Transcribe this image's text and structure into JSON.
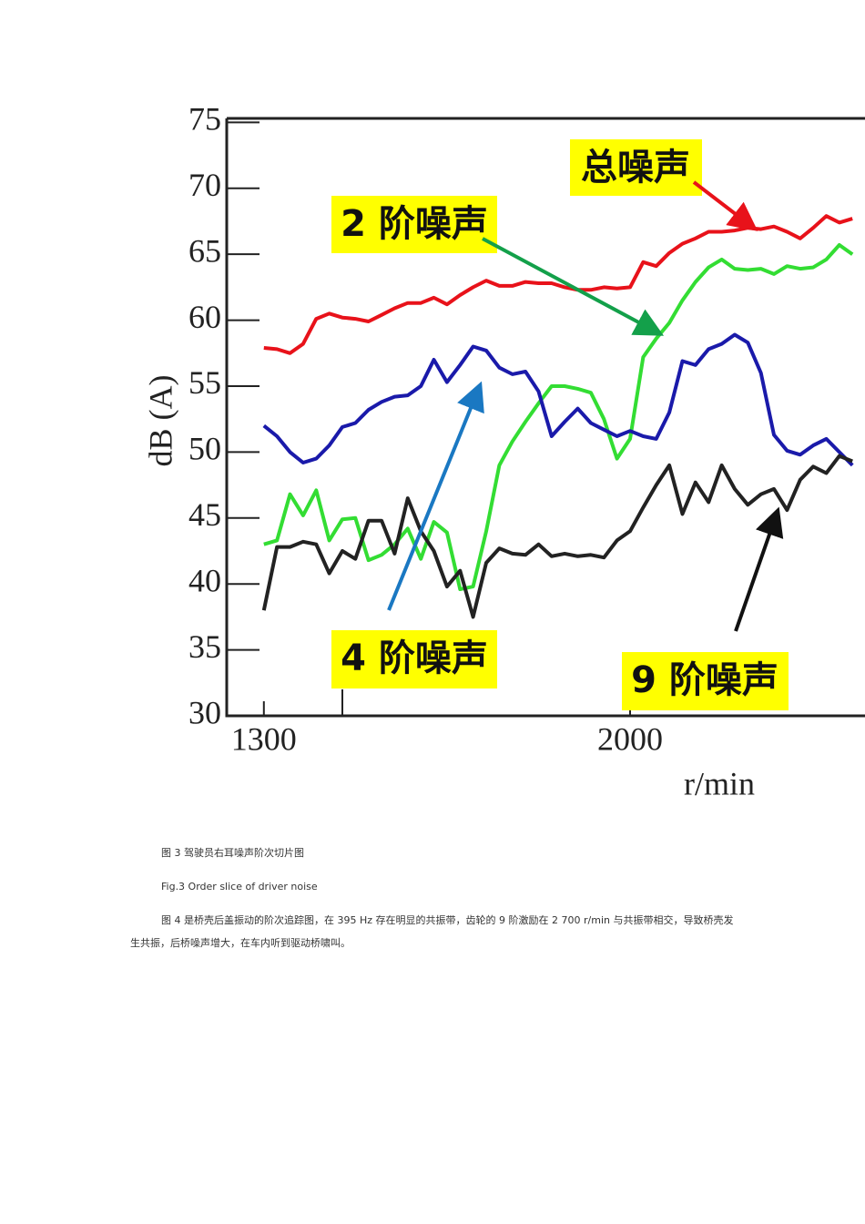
{
  "chart_data": {
    "type": "line",
    "ylabel": "dB (A)",
    "xlabel": "r/min",
    "x": [
      1300,
      1325,
      1350,
      1375,
      1400,
      1425,
      1450,
      1475,
      1500,
      1525,
      1550,
      1575,
      1600,
      1625,
      1650,
      1675,
      1700,
      1725,
      1750,
      1775,
      1800,
      1825,
      1850,
      1875,
      1900,
      1925,
      1950,
      1975,
      2000,
      2025,
      2050,
      2075,
      2100,
      2125,
      2150,
      2175,
      2200,
      2225,
      2250,
      2275,
      2300,
      2325,
      2350,
      2375,
      2400,
      2425
    ],
    "xlim": [
      1229,
      2449
    ],
    "xticks": [
      1300,
      2000
    ],
    "ylim": [
      30,
      75.3
    ],
    "yticks": [
      30,
      35,
      40,
      45,
      50,
      55,
      60,
      65,
      70,
      75
    ],
    "series": [
      {
        "name": "总噪声",
        "color": "#e8121a",
        "values": [
          57.9,
          57.8,
          57.5,
          58.2,
          60.1,
          60.5,
          60.2,
          60.1,
          59.9,
          60.4,
          60.9,
          61.3,
          61.3,
          61.7,
          61.2,
          61.9,
          62.5,
          63.0,
          62.6,
          62.6,
          62.9,
          62.8,
          62.8,
          62.5,
          62.3,
          62.3,
          62.5,
          62.4,
          62.5,
          64.4,
          64.1,
          65.1,
          65.8,
          66.2,
          66.7,
          66.7,
          66.8,
          67.0,
          66.9,
          67.1,
          66.7,
          66.2,
          67.0,
          67.9,
          67.4,
          67.7
        ]
      },
      {
        "name": "2 阶噪声",
        "color": "#33dd33",
        "values": [
          43.0,
          43.3,
          46.8,
          45.2,
          47.1,
          43.3,
          44.9,
          45.0,
          41.8,
          42.2,
          43.0,
          44.2,
          41.9,
          44.7,
          43.9,
          39.6,
          39.8,
          44.0,
          49.0,
          50.8,
          52.3,
          53.7,
          55.0,
          55.0,
          54.8,
          54.5,
          52.5,
          49.5,
          51.0,
          57.2,
          58.6,
          59.8,
          61.5,
          62.9,
          64.0,
          64.6,
          63.9,
          63.8,
          63.9,
          63.5,
          64.1,
          63.9,
          64.0,
          64.6,
          65.7,
          65.0
        ]
      },
      {
        "name": "4 阶噪声",
        "color": "#1a1aaa",
        "values": [
          52.0,
          51.2,
          50.0,
          49.2,
          49.5,
          50.5,
          51.9,
          52.2,
          53.2,
          53.8,
          54.2,
          54.3,
          55.0,
          57.0,
          55.3,
          56.6,
          58.0,
          57.7,
          56.4,
          55.9,
          56.1,
          54.6,
          51.2,
          52.3,
          53.3,
          52.2,
          51.7,
          51.2,
          51.6,
          51.2,
          51.0,
          53.0,
          56.9,
          56.6,
          57.8,
          58.2,
          58.9,
          58.3,
          56.0,
          51.3,
          50.1,
          49.8,
          50.5,
          51.0,
          50.0,
          49.0
        ]
      },
      {
        "name": "9 阶噪声",
        "color": "#222222",
        "values": [
          38.0,
          42.8,
          42.8,
          43.2,
          43.0,
          40.8,
          42.5,
          41.9,
          44.8,
          44.8,
          42.3,
          46.5,
          44.0,
          42.5,
          39.8,
          41.0,
          37.5,
          41.6,
          42.7,
          42.3,
          42.2,
          43.0,
          42.1,
          42.3,
          42.1,
          42.2,
          42.0,
          43.3,
          44.0,
          45.8,
          47.5,
          49.0,
          45.3,
          47.7,
          46.2,
          49.0,
          47.2,
          46.0,
          46.8,
          47.2,
          45.6,
          47.9,
          48.9,
          48.4,
          49.7,
          49.3
        ]
      }
    ]
  },
  "caption_cn": "图 3 驾驶员右耳噪声阶次切片图",
  "caption_en": "Fig.3 Order slice of driver noise",
  "paragraph": "图 4 是桥壳后盖振动的阶次追踪图，在 395 Hz 存在明显的共振带，齿轮的 9 阶激励在 2 700 r/min 与共振带相交，导致桥壳发生共振，后桥噪声增大，在车内听到驱动桥啸叫。"
}
